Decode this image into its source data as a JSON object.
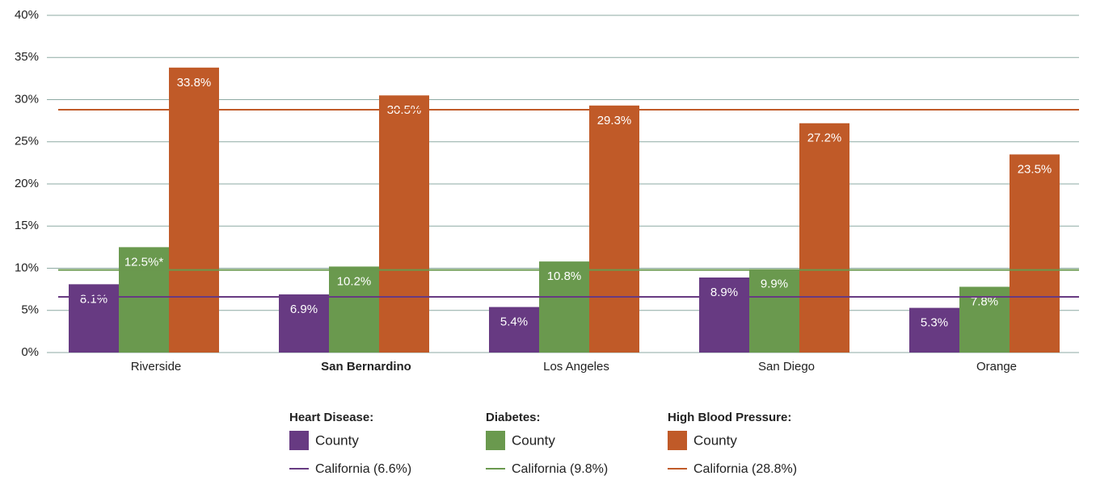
{
  "chart_data": {
    "type": "bar",
    "categories": [
      "Riverside",
      "San Bernardino",
      "Los Angeles",
      "San Diego",
      "Orange"
    ],
    "highlight_category": 1,
    "series": [
      {
        "group": "Heart Disease:",
        "name": "County",
        "color": "#673a82",
        "values": [
          8.1,
          6.9,
          5.4,
          8.9,
          5.3
        ],
        "value_labels": [
          "8.1%",
          "6.9%",
          "5.4%",
          "8.9%",
          "5.3%"
        ],
        "reference": {
          "name": "California (6.6%)",
          "value": 6.6
        }
      },
      {
        "group": "Diabetes:",
        "name": "County",
        "color": "#6a994e",
        "values": [
          12.5,
          10.2,
          10.8,
          9.9,
          7.8
        ],
        "value_labels": [
          "12.5%*",
          "10.2%",
          "10.8%",
          "9.9%",
          "7.8%"
        ],
        "reference": {
          "name": "California (9.8%)",
          "value": 9.8
        }
      },
      {
        "group": "High Blood Pressure:",
        "name": "County",
        "color": "#c05a28",
        "values": [
          33.8,
          30.5,
          29.3,
          27.2,
          23.5
        ],
        "value_labels": [
          "33.8%",
          "30.5%",
          "29.3%",
          "27.2%",
          "23.5%"
        ],
        "reference": {
          "name": "California (28.8%)",
          "value": 28.8
        }
      }
    ],
    "ylim": [
      0,
      40
    ],
    "yticks": [
      {
        "value": 0,
        "label": "0%"
      },
      {
        "value": 5,
        "label": "5%"
      },
      {
        "value": 10,
        "label": "10%"
      },
      {
        "value": 15,
        "label": "15%"
      },
      {
        "value": 20,
        "label": "20%"
      },
      {
        "value": 25,
        "label": "25%"
      },
      {
        "value": 30,
        "label": "30%"
      },
      {
        "value": 35,
        "label": "35%"
      },
      {
        "value": 40,
        "label": "40%"
      }
    ],
    "grid": true
  }
}
